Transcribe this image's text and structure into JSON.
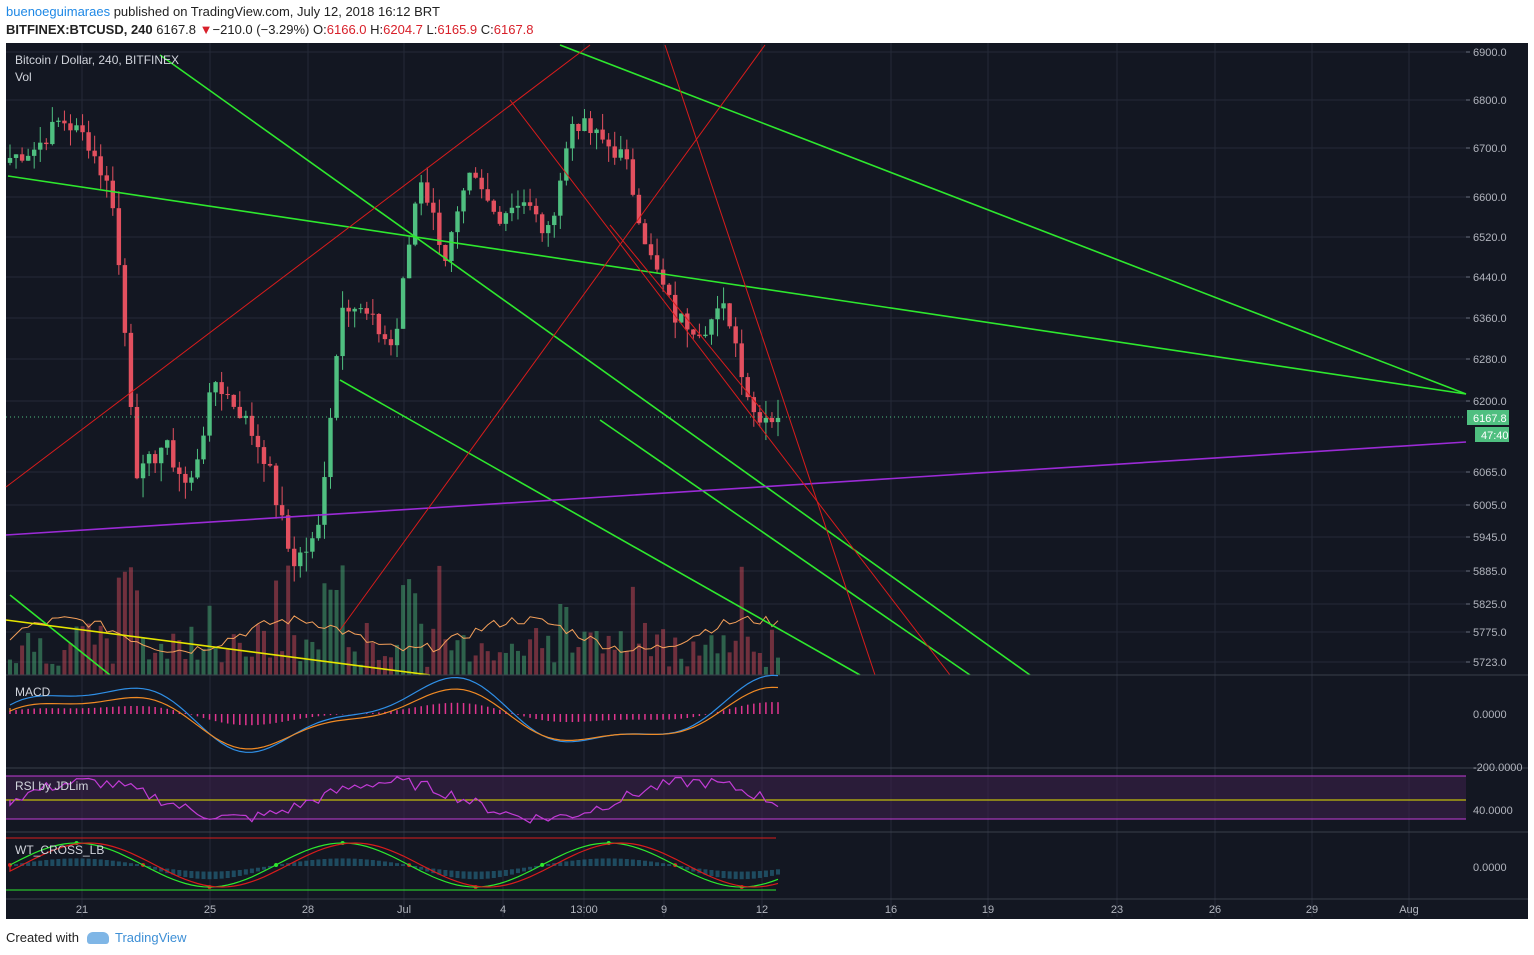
{
  "header": {
    "user": "bueno",
    "publisher": "eguimaraes",
    "published_text": " published on TradingView.com, July 12, 2018 16:12 BRT",
    "symbol": "BITFINEX:BTCUSD, 240",
    "last": "6167.8",
    "change_arrow": "▼",
    "change": "−210.0 (−3.29%)",
    "o_label": "O:",
    "o": "6166.0",
    "h_label": "H:",
    "h": "6204.7",
    "l_label": "L:",
    "l": "6165.9",
    "c_label": "C:",
    "c": "6167.8"
  },
  "main_pane": {
    "title": "Bitcoin / Dollar, 240, BITFINEX",
    "sub": "Vol",
    "price_badge": "6167.8",
    "countdown_badge": "47:40"
  },
  "macd_pane": {
    "title": "MACD",
    "ticks": [
      "0.0000",
      "-200.0000"
    ]
  },
  "rsi_pane": {
    "title": "RSI by JDLim",
    "ticks": [
      "40.0000"
    ]
  },
  "wt_pane": {
    "title": "WT_CROSS_LB",
    "ticks": [
      "0.0000"
    ]
  },
  "footer": {
    "created_with": "Created with",
    "brand": "TradingView"
  },
  "colors": {
    "background": "#131722",
    "up": "#4fbf80",
    "down": "#e3505f",
    "green_line": "#2ee82e",
    "red_line": "#d81c1c",
    "purple_line": "#9b2bd6",
    "yellow_line": "#e5e500"
  },
  "chart_data": {
    "type": "candlestick",
    "y_axis": [
      "6900.0",
      "6800.0",
      "6700.0",
      "6600.0",
      "6520.0",
      "6440.0",
      "6360.0",
      "6280.0",
      "6200.0",
      "6065.0",
      "6005.0",
      "5945.0",
      "5885.0",
      "5825.0",
      "5775.0",
      "5723.0"
    ],
    "x_axis": [
      "21",
      "25",
      "28",
      "Jul",
      "4",
      "13:00",
      "9",
      "12",
      "16",
      "19",
      "23",
      "26",
      "29",
      "Aug"
    ],
    "last_price": 6167.8,
    "ohlc_anchor_closes": [
      6680,
      6700,
      6760,
      6720,
      6600,
      6050,
      6120,
      6030,
      6240,
      6180,
      6090,
      5900,
      5940,
      6400,
      6360,
      6300,
      6650,
      6480,
      6640,
      6560,
      6600,
      6520,
      6760,
      6720,
      6680,
      6480,
      6360,
      6340,
      6380,
      6180,
      6167.8
    ]
  }
}
